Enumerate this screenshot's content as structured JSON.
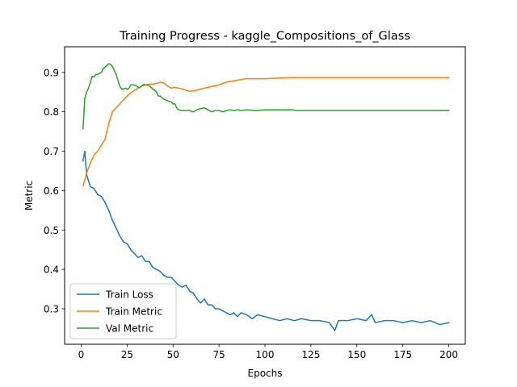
{
  "chart_data": {
    "type": "line",
    "title": "Training Progress - kaggle_Compositions_of_Glass",
    "xlabel": "Epochs",
    "ylabel": "Metric",
    "xlim": [
      -9,
      209
    ],
    "ylim": [
      0.21,
      0.965
    ],
    "xticks": [
      0,
      25,
      50,
      75,
      100,
      125,
      150,
      175,
      200
    ],
    "yticks": [
      0.3,
      0.4,
      0.5,
      0.6,
      0.7,
      0.8,
      0.9
    ],
    "grid": false,
    "legend_position": "lower-left",
    "series": [
      {
        "name": "Train Loss",
        "color": "#1f77b4",
        "points": [
          [
            1,
            0.675
          ],
          [
            2,
            0.7
          ],
          [
            3,
            0.64
          ],
          [
            5,
            0.61
          ],
          [
            7,
            0.605
          ],
          [
            9,
            0.59
          ],
          [
            11,
            0.585
          ],
          [
            13,
            0.57
          ],
          [
            15,
            0.55
          ],
          [
            17,
            0.525
          ],
          [
            19,
            0.505
          ],
          [
            21,
            0.485
          ],
          [
            23,
            0.47
          ],
          [
            25,
            0.465
          ],
          [
            27,
            0.45
          ],
          [
            29,
            0.44
          ],
          [
            31,
            0.43
          ],
          [
            33,
            0.435
          ],
          [
            35,
            0.42
          ],
          [
            37,
            0.42
          ],
          [
            39,
            0.405
          ],
          [
            41,
            0.4
          ],
          [
            43,
            0.395
          ],
          [
            45,
            0.385
          ],
          [
            47,
            0.38
          ],
          [
            49,
            0.38
          ],
          [
            51,
            0.37
          ],
          [
            53,
            0.36
          ],
          [
            55,
            0.355
          ],
          [
            57,
            0.36
          ],
          [
            59,
            0.345
          ],
          [
            61,
            0.34
          ],
          [
            63,
            0.325
          ],
          [
            65,
            0.315
          ],
          [
            67,
            0.325
          ],
          [
            69,
            0.31
          ],
          [
            71,
            0.31
          ],
          [
            73,
            0.3
          ],
          [
            75,
            0.3
          ],
          [
            77,
            0.295
          ],
          [
            79,
            0.29
          ],
          [
            81,
            0.285
          ],
          [
            83,
            0.29
          ],
          [
            85,
            0.28
          ],
          [
            87,
            0.29
          ],
          [
            90,
            0.285
          ],
          [
            93,
            0.275
          ],
          [
            96,
            0.285
          ],
          [
            100,
            0.28
          ],
          [
            104,
            0.275
          ],
          [
            108,
            0.27
          ],
          [
            112,
            0.275
          ],
          [
            116,
            0.27
          ],
          [
            120,
            0.275
          ],
          [
            125,
            0.27
          ],
          [
            130,
            0.27
          ],
          [
            135,
            0.265
          ],
          [
            138,
            0.245
          ],
          [
            140,
            0.27
          ],
          [
            145,
            0.27
          ],
          [
            150,
            0.275
          ],
          [
            155,
            0.27
          ],
          [
            158,
            0.285
          ],
          [
            160,
            0.265
          ],
          [
            165,
            0.27
          ],
          [
            170,
            0.27
          ],
          [
            175,
            0.265
          ],
          [
            180,
            0.27
          ],
          [
            185,
            0.265
          ],
          [
            190,
            0.27
          ],
          [
            195,
            0.26
          ],
          [
            200,
            0.265
          ]
        ]
      },
      {
        "name": "Train Metric",
        "color": "#ff7f0e",
        "points": [
          [
            1,
            0.612
          ],
          [
            3,
            0.645
          ],
          [
            5,
            0.67
          ],
          [
            7,
            0.69
          ],
          [
            9,
            0.7
          ],
          [
            11,
            0.715
          ],
          [
            13,
            0.73
          ],
          [
            15,
            0.77
          ],
          [
            17,
            0.8
          ],
          [
            19,
            0.81
          ],
          [
            21,
            0.82
          ],
          [
            23,
            0.83
          ],
          [
            25,
            0.84
          ],
          [
            27,
            0.848
          ],
          [
            29,
            0.855
          ],
          [
            31,
            0.86
          ],
          [
            33,
            0.865
          ],
          [
            35,
            0.868
          ],
          [
            37,
            0.87
          ],
          [
            39,
            0.87
          ],
          [
            41,
            0.872
          ],
          [
            43,
            0.875
          ],
          [
            45,
            0.873
          ],
          [
            47,
            0.865
          ],
          [
            49,
            0.86
          ],
          [
            51,
            0.862
          ],
          [
            53,
            0.86
          ],
          [
            55,
            0.858
          ],
          [
            57,
            0.855
          ],
          [
            59,
            0.852
          ],
          [
            61,
            0.853
          ],
          [
            63,
            0.855
          ],
          [
            65,
            0.858
          ],
          [
            67,
            0.86
          ],
          [
            69,
            0.862
          ],
          [
            71,
            0.864
          ],
          [
            73,
            0.866
          ],
          [
            75,
            0.868
          ],
          [
            77,
            0.872
          ],
          [
            79,
            0.875
          ],
          [
            81,
            0.877
          ],
          [
            84,
            0.879
          ],
          [
            87,
            0.882
          ],
          [
            90,
            0.884
          ],
          [
            95,
            0.884
          ],
          [
            100,
            0.884
          ],
          [
            105,
            0.885
          ],
          [
            110,
            0.886
          ],
          [
            115,
            0.887
          ],
          [
            120,
            0.887
          ],
          [
            130,
            0.887
          ],
          [
            140,
            0.887
          ],
          [
            150,
            0.887
          ],
          [
            160,
            0.887
          ],
          [
            170,
            0.887
          ],
          [
            180,
            0.887
          ],
          [
            190,
            0.887
          ],
          [
            200,
            0.887
          ]
        ]
      },
      {
        "name": "Val Metric",
        "color": "#2ca02c",
        "points": [
          [
            1,
            0.757
          ],
          [
            2,
            0.835
          ],
          [
            3,
            0.85
          ],
          [
            4,
            0.86
          ],
          [
            5,
            0.875
          ],
          [
            6,
            0.89
          ],
          [
            7,
            0.888
          ],
          [
            8,
            0.895
          ],
          [
            9,
            0.895
          ],
          [
            10,
            0.898
          ],
          [
            11,
            0.9
          ],
          [
            12,
            0.91
          ],
          [
            13,
            0.913
          ],
          [
            14,
            0.918
          ],
          [
            15,
            0.922
          ],
          [
            16,
            0.92
          ],
          [
            17,
            0.915
          ],
          [
            18,
            0.905
          ],
          [
            19,
            0.895
          ],
          [
            20,
            0.88
          ],
          [
            21,
            0.865
          ],
          [
            22,
            0.858
          ],
          [
            23,
            0.858
          ],
          [
            24,
            0.86
          ],
          [
            25,
            0.857
          ],
          [
            26,
            0.86
          ],
          [
            27,
            0.868
          ],
          [
            28,
            0.868
          ],
          [
            29,
            0.868
          ],
          [
            30,
            0.866
          ],
          [
            31,
            0.862
          ],
          [
            32,
            0.862
          ],
          [
            33,
            0.866
          ],
          [
            34,
            0.87
          ],
          [
            35,
            0.868
          ],
          [
            36,
            0.868
          ],
          [
            37,
            0.866
          ],
          [
            38,
            0.862
          ],
          [
            39,
            0.858
          ],
          [
            40,
            0.854
          ],
          [
            41,
            0.85
          ],
          [
            42,
            0.84
          ],
          [
            43,
            0.84
          ],
          [
            44,
            0.836
          ],
          [
            45,
            0.832
          ],
          [
            46,
            0.83
          ],
          [
            47,
            0.828
          ],
          [
            48,
            0.826
          ],
          [
            49,
            0.825
          ],
          [
            50,
            0.82
          ],
          [
            51,
            0.82
          ],
          [
            52,
            0.81
          ],
          [
            53,
            0.805
          ],
          [
            55,
            0.803
          ],
          [
            57,
            0.803
          ],
          [
            59,
            0.803
          ],
          [
            61,
            0.8
          ],
          [
            63,
            0.805
          ],
          [
            65,
            0.808
          ],
          [
            67,
            0.81
          ],
          [
            69,
            0.805
          ],
          [
            71,
            0.8
          ],
          [
            73,
            0.803
          ],
          [
            75,
            0.803
          ],
          [
            77,
            0.8
          ],
          [
            79,
            0.803
          ],
          [
            81,
            0.805
          ],
          [
            83,
            0.803
          ],
          [
            85,
            0.805
          ],
          [
            87,
            0.803
          ],
          [
            90,
            0.805
          ],
          [
            95,
            0.803
          ],
          [
            100,
            0.805
          ],
          [
            105,
            0.805
          ],
          [
            110,
            0.805
          ],
          [
            115,
            0.805
          ],
          [
            118,
            0.803
          ],
          [
            125,
            0.803
          ],
          [
            135,
            0.803
          ],
          [
            150,
            0.803
          ],
          [
            165,
            0.803
          ],
          [
            180,
            0.803
          ],
          [
            200,
            0.803
          ]
        ]
      }
    ]
  }
}
